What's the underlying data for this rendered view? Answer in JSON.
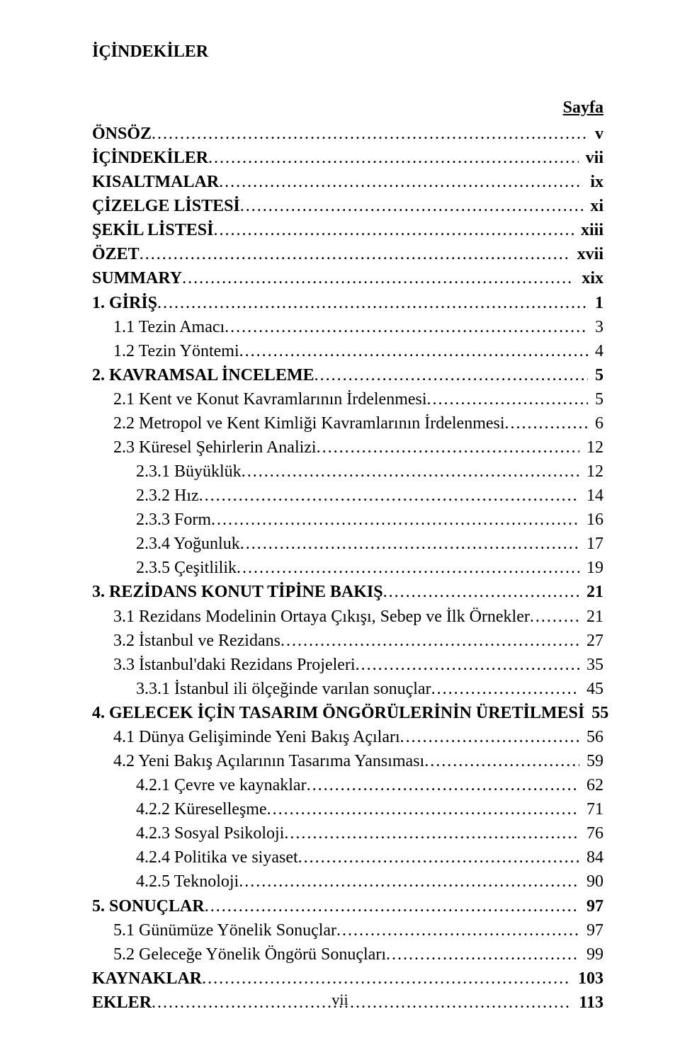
{
  "title": "İÇİNDEKİLER",
  "pageLabel": "Sayfa",
  "footer": "vii",
  "entries": [
    {
      "label": "ÖNSÖZ",
      "page": "v",
      "bold": true,
      "indent": 0
    },
    {
      "label": "İÇİNDEKİLER",
      "page": "vii",
      "bold": true,
      "indent": 0
    },
    {
      "label": "KISALTMALAR",
      "page": "ix",
      "bold": true,
      "indent": 0
    },
    {
      "label": "ÇİZELGE LİSTESİ",
      "page": "xi",
      "bold": true,
      "indent": 0
    },
    {
      "label": "ŞEKİL LİSTESİ",
      "page": "xiii",
      "bold": true,
      "indent": 0
    },
    {
      "label": "ÖZET",
      "page": "xvii",
      "bold": true,
      "indent": 0
    },
    {
      "label": "SUMMARY",
      "page": "xix",
      "bold": true,
      "indent": 0
    },
    {
      "label": "1. GİRİŞ",
      "page": "1",
      "bold": true,
      "indent": 0
    },
    {
      "label": "1.1 Tezin Amacı",
      "page": "3",
      "bold": false,
      "indent": 1
    },
    {
      "label": "1.2 Tezin Yöntemi",
      "page": "4",
      "bold": false,
      "indent": 1
    },
    {
      "label": "2. KAVRAMSAL İNCELEME",
      "page": "5",
      "bold": true,
      "indent": 0
    },
    {
      "label": "2.1 Kent ve Konut Kavramlarının İrdelenmesi",
      "page": "5",
      "bold": false,
      "indent": 1
    },
    {
      "label": "2.2 Metropol ve Kent Kimliği Kavramlarının İrdelenmesi",
      "page": "6",
      "bold": false,
      "indent": 1
    },
    {
      "label": "2.3 Küresel Şehirlerin Analizi",
      "page": "12",
      "bold": false,
      "indent": 1
    },
    {
      "label": "2.3.1 Büyüklük",
      "page": "12",
      "bold": false,
      "indent": 2
    },
    {
      "label": "2.3.2 Hız",
      "page": "14",
      "bold": false,
      "indent": 2
    },
    {
      "label": "2.3.3 Form",
      "page": "16",
      "bold": false,
      "indent": 2
    },
    {
      "label": "2.3.4 Yoğunluk",
      "page": "17",
      "bold": false,
      "indent": 2
    },
    {
      "label": "2.3.5 Çeşitlilik",
      "page": "19",
      "bold": false,
      "indent": 2
    },
    {
      "label": "3. REZİDANS KONUT TİPİNE BAKIŞ",
      "page": "21",
      "bold": true,
      "indent": 0
    },
    {
      "label": "3.1 Rezidans Modelinin Ortaya Çıkışı, Sebep ve İlk Örnekler",
      "page": "21",
      "bold": false,
      "indent": 1
    },
    {
      "label": "3.2 İstanbul ve Rezidans",
      "page": "27",
      "bold": false,
      "indent": 1
    },
    {
      "label": "3.3 İstanbul'daki Rezidans Projeleri",
      "page": "35",
      "bold": false,
      "indent": 1
    },
    {
      "label": "3.3.1 İstanbul ili ölçeğinde varılan sonuçlar",
      "page": "45",
      "bold": false,
      "indent": 2
    },
    {
      "label": "4. GELECEK İÇİN TASARIM ÖNGÖRÜLERİNİN ÜRETİLMESİ",
      "page": "55",
      "bold": true,
      "indent": 0
    },
    {
      "label": "4.1 Dünya Gelişiminde Yeni Bakış Açıları",
      "page": "56",
      "bold": false,
      "indent": 1
    },
    {
      "label": "4.2 Yeni Bakış Açılarının Tasarıma Yansıması",
      "page": "59",
      "bold": false,
      "indent": 1
    },
    {
      "label": "4.2.1 Çevre ve kaynaklar",
      "page": "62",
      "bold": false,
      "indent": 2
    },
    {
      "label": "4.2.2 Küreselleşme",
      "page": "71",
      "bold": false,
      "indent": 2
    },
    {
      "label": "4.2.3 Sosyal Psikoloji",
      "page": "76",
      "bold": false,
      "indent": 2
    },
    {
      "label": "4.2.4 Politika ve siyaset",
      "page": "84",
      "bold": false,
      "indent": 2
    },
    {
      "label": "4.2.5 Teknoloji",
      "page": "90",
      "bold": false,
      "indent": 2
    },
    {
      "label": "5. SONUÇLAR",
      "page": "97",
      "bold": true,
      "indent": 0
    },
    {
      "label": "5.1 Günümüze Yönelik Sonuçlar",
      "page": "97",
      "bold": false,
      "indent": 1
    },
    {
      "label": "5.2 Geleceğe Yönelik Öngörü Sonuçları",
      "page": "99",
      "bold": false,
      "indent": 1
    },
    {
      "label": "KAYNAKLAR",
      "page": "103",
      "bold": true,
      "indent": 0
    },
    {
      "label": "EKLER",
      "page": "113",
      "bold": true,
      "indent": 0
    }
  ]
}
